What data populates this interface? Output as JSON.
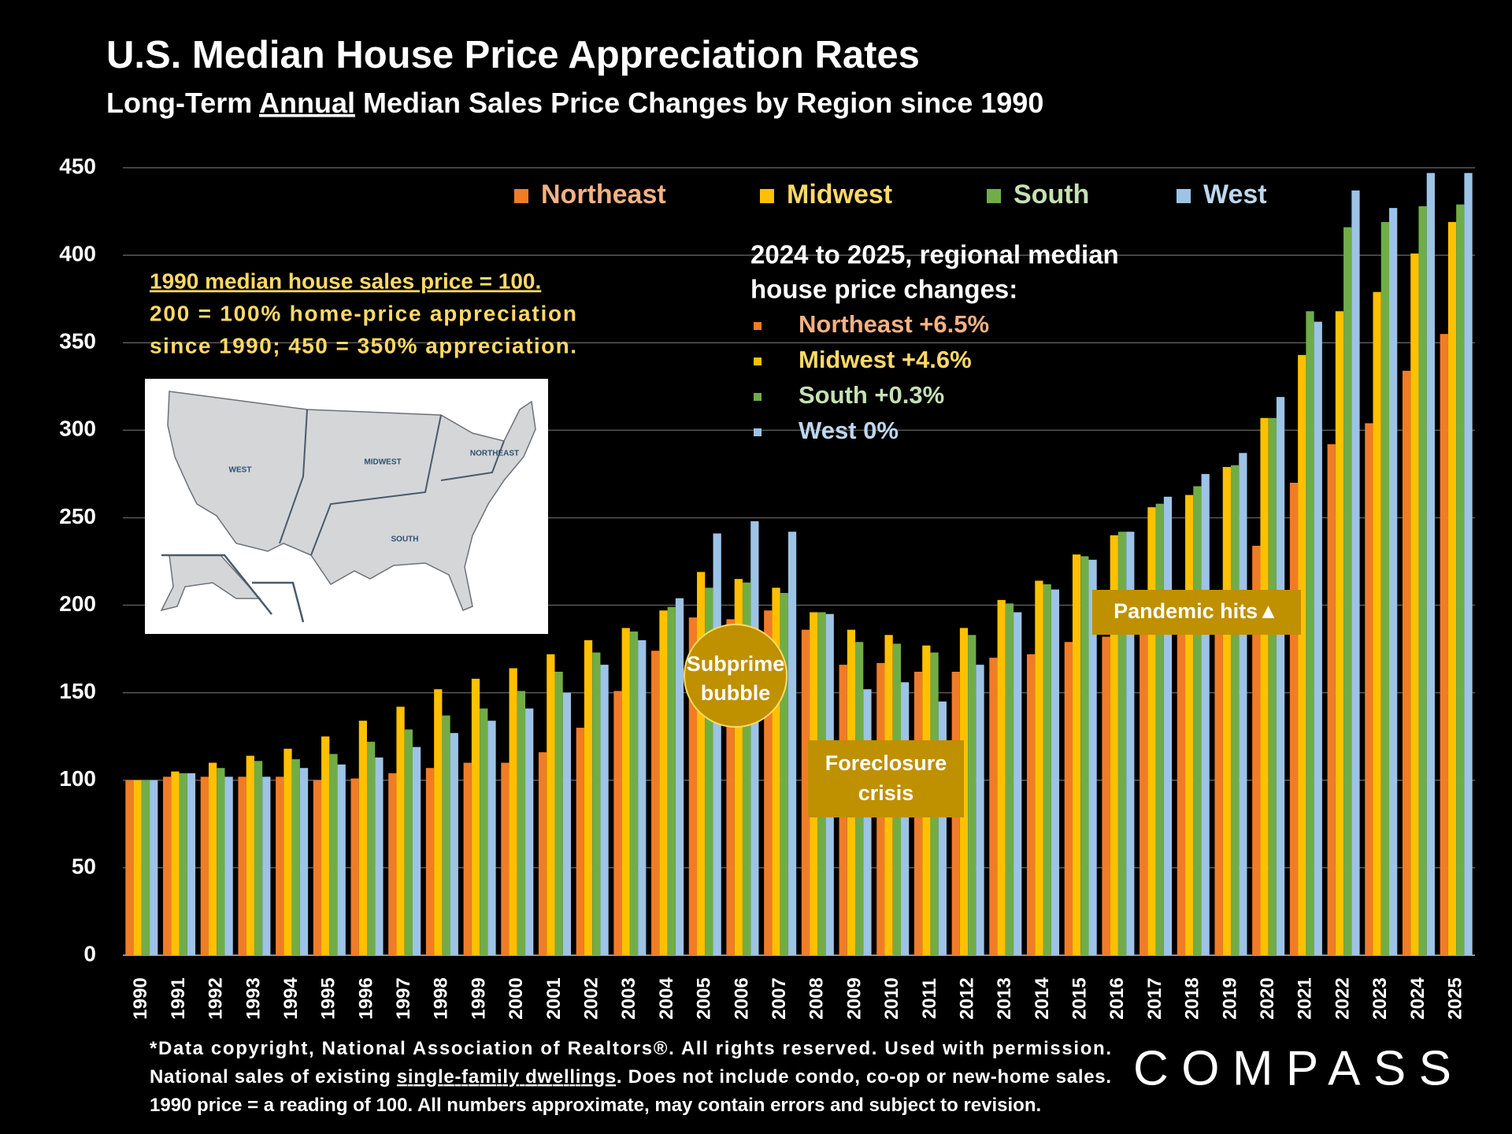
{
  "chart_data": {
    "type": "bar",
    "title": "U.S. Median House Price Appreciation Rates",
    "subtitle": [
      "Long-Term ",
      "Annual",
      " Median Sales Price Changes by Region since 1990"
    ],
    "categories": [
      "1990",
      "1991",
      "1992",
      "1993",
      "1994",
      "1995",
      "1996",
      "1997",
      "1998",
      "1999",
      "2000",
      "2001",
      "2002",
      "2003",
      "2004",
      "2005",
      "2006",
      "2007",
      "2008",
      "2009",
      "2010",
      "2011",
      "2012",
      "2013",
      "2014",
      "2015",
      "2016",
      "2017",
      "2018",
      "2019",
      "2020",
      "2021",
      "2022",
      "2023",
      "2024",
      "2025"
    ],
    "series": [
      {
        "name": "Northeast",
        "color": "#f07c28",
        "text_color": "#f4b183",
        "values": [
          100,
          102,
          102,
          102,
          102,
          100,
          101,
          104,
          107,
          110,
          110,
          116,
          130,
          151,
          174,
          193,
          192,
          197,
          186,
          166,
          167,
          162,
          162,
          170,
          172,
          179,
          182,
          190,
          198,
          205,
          234,
          270,
          292,
          304,
          334,
          355
        ]
      },
      {
        "name": "Midwest",
        "color": "#ffc000",
        "text_color": "#ffd966",
        "values": [
          100,
          105,
          110,
          114,
          118,
          125,
          134,
          142,
          152,
          158,
          164,
          172,
          180,
          187,
          197,
          219,
          215,
          210,
          196,
          186,
          183,
          177,
          187,
          203,
          214,
          229,
          240,
          256,
          263,
          279,
          307,
          343,
          368,
          379,
          401,
          419
        ]
      },
      {
        "name": "South",
        "color": "#70ad47",
        "text_color": "#c5e0b4",
        "values": [
          100,
          104,
          107,
          111,
          112,
          115,
          122,
          129,
          137,
          141,
          151,
          162,
          173,
          185,
          199,
          210,
          213,
          207,
          196,
          179,
          178,
          173,
          183,
          201,
          212,
          228,
          242,
          258,
          268,
          280,
          307,
          368,
          416,
          419,
          428,
          429
        ]
      },
      {
        "name": "West",
        "color": "#9dc3e6",
        "text_color": "#bdd7ee",
        "values": [
          100,
          104,
          102,
          102,
          107,
          109,
          113,
          119,
          127,
          134,
          141,
          150,
          166,
          180,
          204,
          241,
          248,
          242,
          195,
          152,
          156,
          145,
          166,
          196,
          209,
          226,
          242,
          262,
          275,
          287,
          319,
          362,
          437,
          427,
          447,
          447
        ]
      }
    ],
    "ylim": [
      0,
      450
    ],
    "yticks": [
      0,
      50,
      100,
      150,
      200,
      250,
      300,
      350,
      400,
      450
    ],
    "grid": true,
    "legend_position": "top"
  },
  "note": [
    "1990 median house sales price = 100.",
    "200 = 100% home-price appreciation",
    "since 1990; 450 = 350% appreciation."
  ],
  "map_regions": [
    "WEST",
    "MIDWEST",
    "SOUTH",
    "NORTHEAST"
  ],
  "changes": {
    "heading": [
      "2024 to 2025, regional median",
      "house price changes:"
    ],
    "items": [
      "Northeast +6.5%",
      "Midwest +4.6%",
      "South +0.3%",
      "West 0%"
    ]
  },
  "annotations": {
    "subprime": [
      "Subprime",
      "bubble"
    ],
    "foreclosure": [
      "Foreclosure",
      "crisis"
    ],
    "pandemic": "Pandemic hits▲"
  },
  "footnote": [
    [
      "*Data copyright, National Association of Realtors®. All rights reserved. Used with permission."
    ],
    [
      "National sales of existing ",
      "single-family dwellings",
      ". Does not include condo, co-op or new-home sales."
    ],
    [
      "1990 price = a reading of 100. All numbers approximate, may contain errors and subject to revision."
    ]
  ],
  "logo": "COMPASS"
}
